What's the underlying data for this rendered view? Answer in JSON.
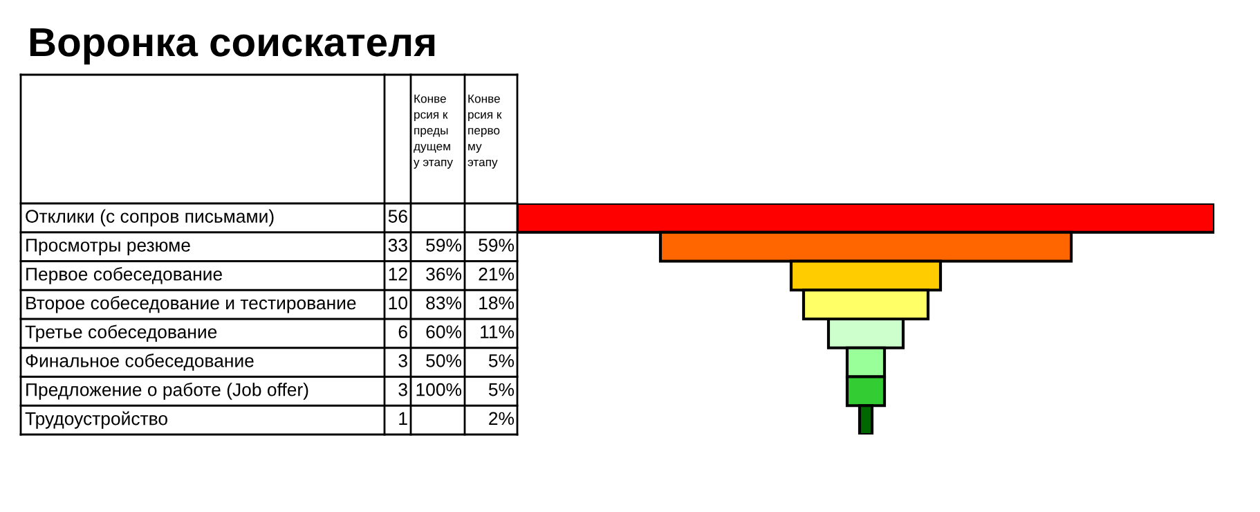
{
  "chart_data": {
    "type": "other",
    "title": "Воронка соискателя",
    "categories": [
      "Отклики (с сопров письмами)",
      "Просмотры резюме",
      "Первое собеседование",
      "Второе собеседование и тестирование",
      "Третье собеседование",
      "Финальное собеседование",
      "Предложение о работе (Job offer)",
      "Трудоустройство"
    ],
    "series": [
      {
        "values": [
          56,
          33,
          12,
          10,
          6,
          3,
          3,
          1
        ],
        "colors": [
          "#ff0000",
          "#ff6600",
          "#ffcc00",
          "#ffff66",
          "#ccffcc",
          "#99ff99",
          "#33cc33",
          "#006600"
        ]
      },
      {
        "name": "Конве\nрсия к\nпреды\nдущем\nу этапу",
        "values": [
          null,
          59,
          36,
          83,
          60,
          50,
          100,
          null
        ],
        "value_labels": [
          null,
          "59%",
          "36%",
          "83%",
          "60%",
          "50%",
          "100%",
          null
        ]
      },
      {
        "name": "Конве\nрсия к\nперво\nму\nэтапу",
        "values": [
          null,
          59,
          21,
          18,
          11,
          5,
          5,
          2
        ],
        "value_labels": [
          null,
          "59%",
          "21%",
          "18%",
          "11%",
          "5%",
          "5%",
          "2%"
        ]
      }
    ],
    "data_labels": true
  }
}
